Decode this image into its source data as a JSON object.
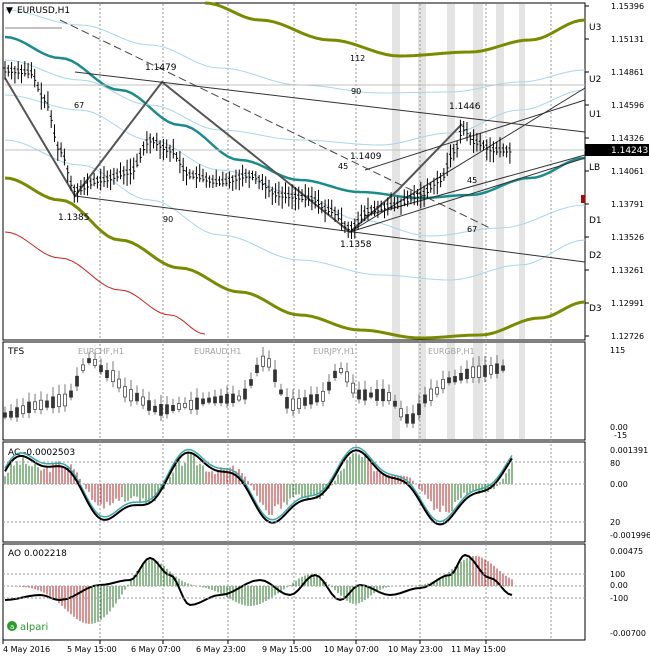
{
  "chart_title": "EURUSD,H1",
  "colors": {
    "band_olive": "#7a8b00",
    "ma_teal": "#1a8c8c",
    "band_light": "#a9d6e8",
    "band_red": "#d02020",
    "bull_bar": "#1e7a1e",
    "bear_bar": "#c02020",
    "ac_signal": "#39a9a9",
    "price_box": "#000000",
    "shade": "#e4e4e4"
  },
  "price_axis": [
    "1.15396",
    "1.15131",
    "1.14861",
    "1.14596",
    "1.14326",
    "1.14061",
    "1.13791",
    "1.13526",
    "1.13261",
    "1.12991",
    "1.12726"
  ],
  "current_price": "1.14243",
  "band_labels": [
    "U3",
    "U2",
    "U1",
    "LB",
    "D1",
    "D2",
    "D3"
  ],
  "annotations": {
    "p1479": "1.1479",
    "p1385": "1.1385",
    "p1409": "1.1409",
    "p1358": "1.1358",
    "p1446": "1.1446",
    "n112": "112",
    "n90a": "90",
    "n67a": "67",
    "n45a": "45",
    "n90b": "90",
    "n45b": "45",
    "n67b": "67"
  },
  "tfs": {
    "title": "TFS",
    "pairs": [
      "EURCHF,H1",
      "EURAUD,H1",
      "EURJPY,H1",
      "EURGBP,H1"
    ],
    "axis": [
      "115",
      "0.00",
      "-15"
    ]
  },
  "ac": {
    "title": "AC -0.0002503",
    "axis": [
      "0.001391",
      "80",
      "0.00",
      "20",
      "-0.001996"
    ]
  },
  "ao": {
    "title": "AO 0.002218",
    "axis": [
      "0.00475",
      "100",
      "0.00",
      "-100",
      "-0.00700"
    ]
  },
  "time_axis": [
    "4 May 2016",
    "5 May 15:00",
    "6 May 07:00",
    "6 May 23:00",
    "9 May 15:00",
    "10 May 07:00",
    "10 May 23:00",
    "11 May 15:00"
  ],
  "watermark": "alpari"
}
